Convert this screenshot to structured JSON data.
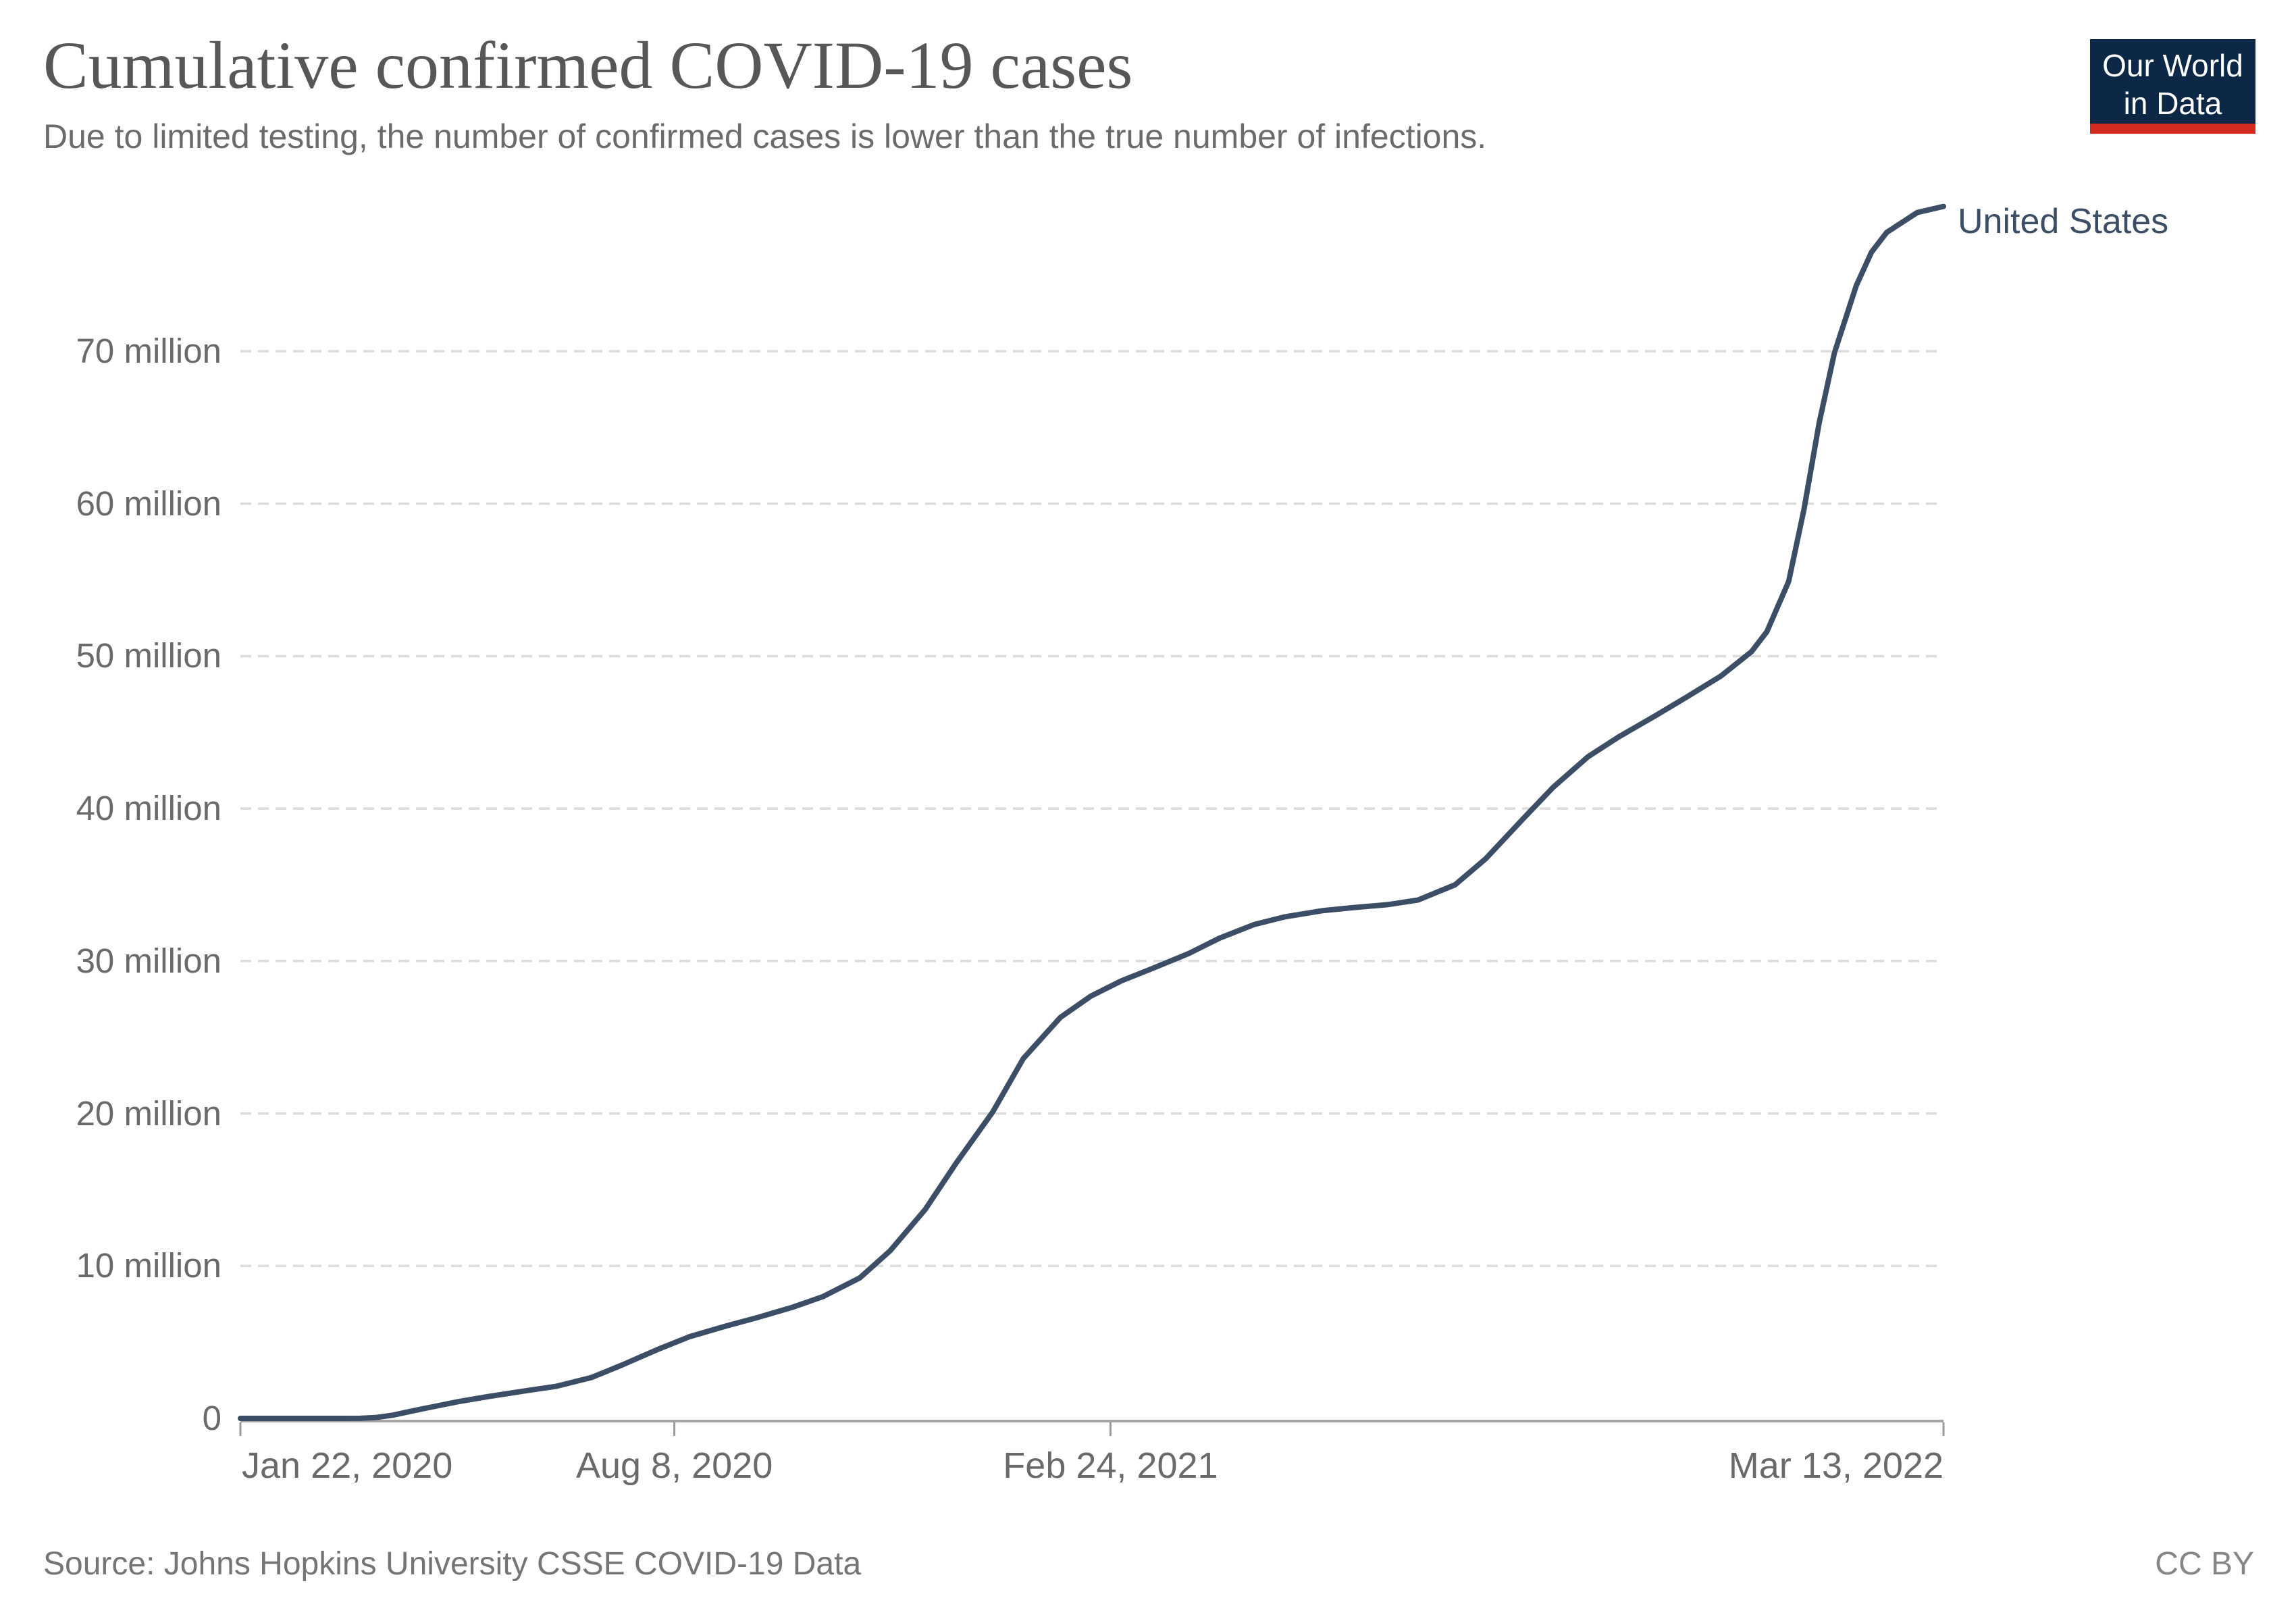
{
  "header": {
    "title": "Cumulative confirmed COVID-19 cases",
    "subtitle": "Due to limited testing, the number of confirmed cases is lower than the true number of infections."
  },
  "logo": {
    "line1": "Our World",
    "line2": "in Data",
    "background_color": "#0d2847",
    "stripe_color": "#d42b21"
  },
  "chart_data": {
    "type": "line",
    "title": "Cumulative confirmed COVID-19 cases",
    "xlabel": "",
    "ylabel": "",
    "unit": "cases (millions)",
    "grid": "dashed-horizontal",
    "legend_position": "end-of-line",
    "xlim": [
      "2020-01-22",
      "2022-03-13"
    ],
    "ylim": [
      0,
      79.5
    ],
    "y_ticks": [
      {
        "value": 0,
        "label": "0"
      },
      {
        "value": 10,
        "label": "10 million"
      },
      {
        "value": 20,
        "label": "20 million"
      },
      {
        "value": 30,
        "label": "30 million"
      },
      {
        "value": 40,
        "label": "40 million"
      },
      {
        "value": 50,
        "label": "50 million"
      },
      {
        "value": 60,
        "label": "60 million"
      },
      {
        "value": 70,
        "label": "70 million"
      }
    ],
    "x_ticks": [
      {
        "date": "2020-01-22",
        "label": "Jan 22, 2020",
        "align": "left"
      },
      {
        "date": "2020-08-08",
        "label": "Aug 8, 2020",
        "align": "center"
      },
      {
        "date": "2021-02-24",
        "label": "Feb 24, 2021",
        "align": "center"
      },
      {
        "date": "2022-03-13",
        "label": "Mar 13, 2022",
        "align": "right"
      }
    ],
    "series": [
      {
        "name": "United States",
        "color": "#3c4e66",
        "points": [
          [
            "2020-01-22",
            0.0
          ],
          [
            "2020-02-15",
            0.0
          ],
          [
            "2020-03-01",
            3e-05
          ],
          [
            "2020-03-10",
            0.001
          ],
          [
            "2020-03-17",
            0.006
          ],
          [
            "2020-03-24",
            0.054
          ],
          [
            "2020-04-01",
            0.213
          ],
          [
            "2020-04-08",
            0.43
          ],
          [
            "2020-04-15",
            0.64
          ],
          [
            "2020-04-22",
            0.84
          ],
          [
            "2020-05-01",
            1.1
          ],
          [
            "2020-05-15",
            1.44
          ],
          [
            "2020-06-01",
            1.81
          ],
          [
            "2020-06-15",
            2.11
          ],
          [
            "2020-07-01",
            2.68
          ],
          [
            "2020-07-15",
            3.5
          ],
          [
            "2020-08-01",
            4.56
          ],
          [
            "2020-08-15",
            5.36
          ],
          [
            "2020-09-01",
            6.07
          ],
          [
            "2020-09-15",
            6.61
          ],
          [
            "2020-10-01",
            7.28
          ],
          [
            "2020-10-15",
            7.98
          ],
          [
            "2020-11-01",
            9.21
          ],
          [
            "2020-11-15",
            11.0
          ],
          [
            "2020-12-01",
            13.7
          ],
          [
            "2020-12-15",
            16.7
          ],
          [
            "2021-01-01",
            20.1
          ],
          [
            "2021-01-15",
            23.6
          ],
          [
            "2021-02-01",
            26.3
          ],
          [
            "2021-02-15",
            27.7
          ],
          [
            "2021-03-01",
            28.7
          ],
          [
            "2021-03-15",
            29.5
          ],
          [
            "2021-04-01",
            30.5
          ],
          [
            "2021-04-15",
            31.5
          ],
          [
            "2021-05-01",
            32.4
          ],
          [
            "2021-05-15",
            32.9
          ],
          [
            "2021-06-01",
            33.3
          ],
          [
            "2021-06-15",
            33.5
          ],
          [
            "2021-07-01",
            33.7
          ],
          [
            "2021-07-15",
            34.0
          ],
          [
            "2021-08-01",
            35.0
          ],
          [
            "2021-08-15",
            36.7
          ],
          [
            "2021-09-01",
            39.3
          ],
          [
            "2021-09-15",
            41.4
          ],
          [
            "2021-10-01",
            43.4
          ],
          [
            "2021-10-15",
            44.7
          ],
          [
            "2021-11-01",
            46.1
          ],
          [
            "2021-11-15",
            47.3
          ],
          [
            "2021-12-01",
            48.7
          ],
          [
            "2021-12-15",
            50.3
          ],
          [
            "2021-12-22",
            51.6
          ],
          [
            "2022-01-01",
            54.9
          ],
          [
            "2022-01-08",
            59.6
          ],
          [
            "2022-01-15",
            65.3
          ],
          [
            "2022-01-22",
            69.9
          ],
          [
            "2022-02-01",
            74.3
          ],
          [
            "2022-02-08",
            76.5
          ],
          [
            "2022-02-15",
            77.8
          ],
          [
            "2022-03-01",
            79.1
          ],
          [
            "2022-03-13",
            79.5
          ]
        ]
      }
    ],
    "style": {
      "gridline_color": "#dcdcdc",
      "axis_color": "#a6a6a6",
      "tick_color": "#9a9a9a"
    }
  },
  "footer": {
    "source": "Source: Johns Hopkins University CSSE COVID-19 Data",
    "license": "CC BY"
  }
}
